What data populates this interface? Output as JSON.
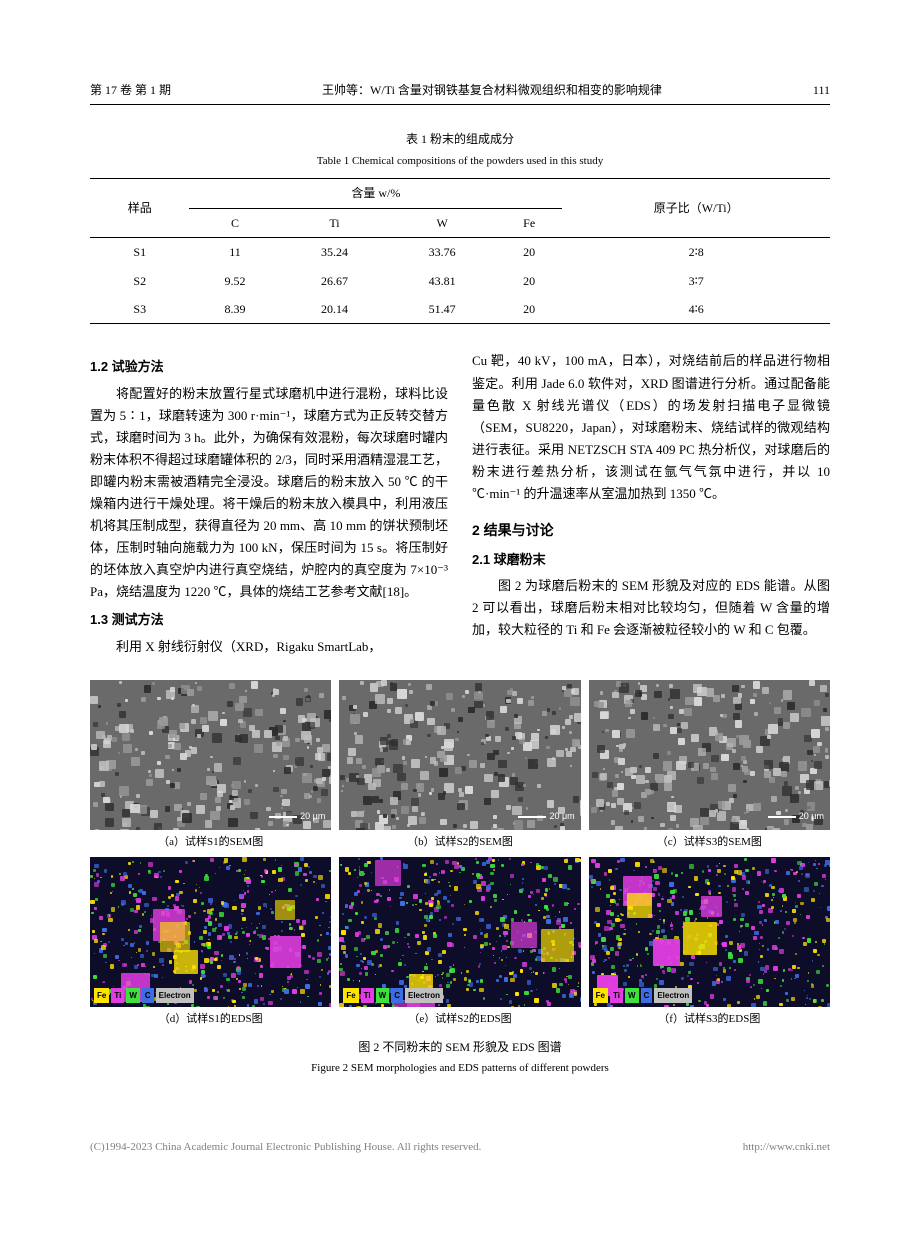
{
  "header": {
    "volume_issue": "第 17 卷   第 1 期",
    "running_title": "王帅等：W/Ti 含量对钢铁基复合材料微观组织和相变的影响规律",
    "page_num": "111"
  },
  "table1": {
    "caption_cn": "表 1   粉末的组成成分",
    "caption_en": "Table 1   Chemical compositions of the powders used in this study",
    "col_sample": "样品",
    "col_content_group": "含量 w/%",
    "col_ratio": "原子比（W/Ti）",
    "cols": [
      "C",
      "Ti",
      "W",
      "Fe"
    ],
    "rows": [
      {
        "sample": "S1",
        "c": "11",
        "ti": "35.24",
        "w": "33.76",
        "fe": "20",
        "ratio": "2∶8"
      },
      {
        "sample": "S2",
        "c": "9.52",
        "ti": "26.67",
        "w": "43.81",
        "fe": "20",
        "ratio": "3∶7"
      },
      {
        "sample": "S3",
        "c": "8.39",
        "ti": "20.14",
        "w": "51.47",
        "fe": "20",
        "ratio": "4∶6"
      }
    ]
  },
  "sections": {
    "s1_2_title": "1.2   试验方法",
    "s1_2_body": "将配置好的粉末放置行星式球磨机中进行混粉，球料比设置为 5∶1，球磨转速为 300 r·min⁻¹，球磨方式为正反转交替方式，球磨时间为 3 h。此外，为确保有效混粉，每次球磨时罐内粉末体积不得超过球磨罐体积的 2/3，同时采用酒精湿混工艺，即罐内粉末需被酒精完全浸没。球磨后的粉末放入 50 ℃ 的干燥箱内进行干燥处理。将干燥后的粉末放入模具中，利用液压机将其压制成型，获得直径为 20 mm、高 10 mm 的饼状预制坯体，压制时轴向施载力为 100 kN，保压时间为 15 s。将压制好的坯体放入真空炉内进行真空烧结，炉腔内的真空度为 7×10⁻³ Pa，烧结温度为 1220 ℃，具体的烧结工艺参考文献[18]。",
    "s1_3_title": "1.3   测试方法",
    "s1_3_body_left": "利用 X 射线衍射仪（XRD，Rigaku SmartLab，",
    "s1_3_body_right": "Cu 靶，40 kV，100 mA，日本），对烧结前后的样品进行物相鉴定。利用 Jade 6.0 软件对，XRD 图谱进行分析。通过配备能量色散 X 射线光谱仪（EDS）的场发射扫描电子显微镜（SEM，SU8220，Japan），对球磨粉末、烧结试样的微观结构进行表征。采用 NETZSCH STA 409 PC 热分析仪，对球磨后的粉末进行差热分析，该测试在氩气气氛中进行，并以 10 ℃·min⁻¹ 的升温速率从室温加热到 1350 ℃。",
    "s2_title": "2   结果与讨论",
    "s2_1_title": "2.1   球磨粉末",
    "s2_1_body": "图 2 为球磨后粉末的 SEM 形貌及对应的 EDS 能谱。从图 2 可以看出，球磨后粉末相对比较均匀，但随着 W 含量的增加，较大粒径的 Ti 和 Fe 会逐渐被粒径较小的 W 和 C 包覆。"
  },
  "figure2": {
    "scalebar_label": "20 μm",
    "panels": [
      {
        "key": "a",
        "type": "sem",
        "caption": "（a）试样S1的SEM图"
      },
      {
        "key": "b",
        "type": "sem",
        "caption": "（b）试样S2的SEM图"
      },
      {
        "key": "c",
        "type": "sem",
        "caption": "（c）试样S3的SEM图"
      },
      {
        "key": "d",
        "type": "eds",
        "caption": "（d）试样S1的EDS图"
      },
      {
        "key": "e",
        "type": "eds",
        "caption": "（e）试样S2的EDS图"
      },
      {
        "key": "f",
        "type": "eds",
        "caption": "（f）试样S3的EDS图"
      }
    ],
    "eds_legend": [
      {
        "label": "Fe",
        "color": "#ffe400"
      },
      {
        "label": "Ti",
        "color": "#e23de2"
      },
      {
        "label": "W",
        "color": "#3de23d"
      },
      {
        "label": "C",
        "color": "#3d6de2"
      },
      {
        "label": "Electron",
        "color": "#c0c0c0"
      }
    ],
    "caption_cn": "图 2   不同粉末的 SEM 形貌及 EDS 图谱",
    "caption_en": "Figure 2   SEM morphologies and EDS patterns of different powders",
    "sem_colors": {
      "bg": "#6a6a6a",
      "light": "#d8d8d8",
      "dark": "#2f2f2f"
    },
    "eds_colors": {
      "bg": "#0d0d2a"
    }
  },
  "footer": {
    "left": "(C)1994-2023 China Academic Journal Electronic Publishing House. All rights reserved.",
    "right": "http://www.cnki.net"
  }
}
